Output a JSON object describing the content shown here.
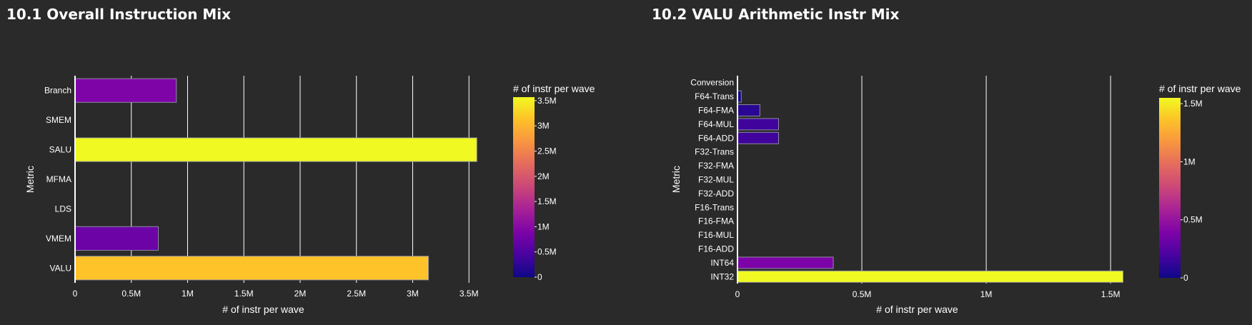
{
  "chart_data": [
    {
      "type": "bar",
      "orientation": "horizontal",
      "title": "10.1 Overall Instruction Mix",
      "xlabel": "# of instr per wave",
      "ylabel": "Metric",
      "xlim": [
        0,
        3600000
      ],
      "x_ticks": [
        0,
        500000,
        1000000,
        1500000,
        2000000,
        2500000,
        3000000,
        3500000
      ],
      "x_tick_labels": [
        "0",
        "0.5M",
        "1M",
        "1.5M",
        "2M",
        "2.5M",
        "3M",
        "3.5M"
      ],
      "categories": [
        "VALU",
        "VMEM",
        "LDS",
        "MFMA",
        "SALU",
        "SMEM",
        "Branch"
      ],
      "values": [
        3140000,
        740000,
        0,
        0,
        3570000,
        0,
        900000
      ],
      "colorbar": {
        "title": "# of instr per wave",
        "range": [
          0,
          3570000
        ],
        "ticks": [
          0,
          500000,
          1000000,
          1500000,
          2000000,
          2500000,
          3000000,
          3500000
        ],
        "tick_labels": [
          "0",
          "0.5M",
          "1M",
          "1.5M",
          "2M",
          "2.5M",
          "3M",
          "3.5M"
        ],
        "colormap": "plasma"
      },
      "grid": true
    },
    {
      "type": "bar",
      "orientation": "horizontal",
      "title": "10.2 VALU Arithmetic Instr Mix",
      "xlabel": "# of instr per wave",
      "ylabel": "Metric",
      "xlim": [
        0,
        1560000
      ],
      "x_ticks": [
        0,
        500000,
        1000000,
        1500000
      ],
      "x_tick_labels": [
        "0",
        "0.5M",
        "1M",
        "1.5M"
      ],
      "categories": [
        "INT32",
        "INT64",
        "F16-ADD",
        "F16-MUL",
        "F16-FMA",
        "F16-Trans",
        "F32-ADD",
        "F32-MUL",
        "F32-FMA",
        "F32-Trans",
        "F64-ADD",
        "F64-MUL",
        "F64-FMA",
        "F64-Trans",
        "Conversion"
      ],
      "values": [
        1550000,
        385000,
        0,
        0,
        0,
        0,
        0,
        0,
        0,
        0,
        165000,
        165000,
        90000,
        15000,
        0
      ],
      "colorbar": {
        "title": "# of instr per wave",
        "range": [
          0,
          1550000
        ],
        "ticks": [
          0,
          500000,
          1000000,
          1500000
        ],
        "tick_labels": [
          "0",
          "0.5M",
          "1M",
          "1.5M"
        ],
        "colormap": "plasma"
      },
      "grid": true
    }
  ]
}
